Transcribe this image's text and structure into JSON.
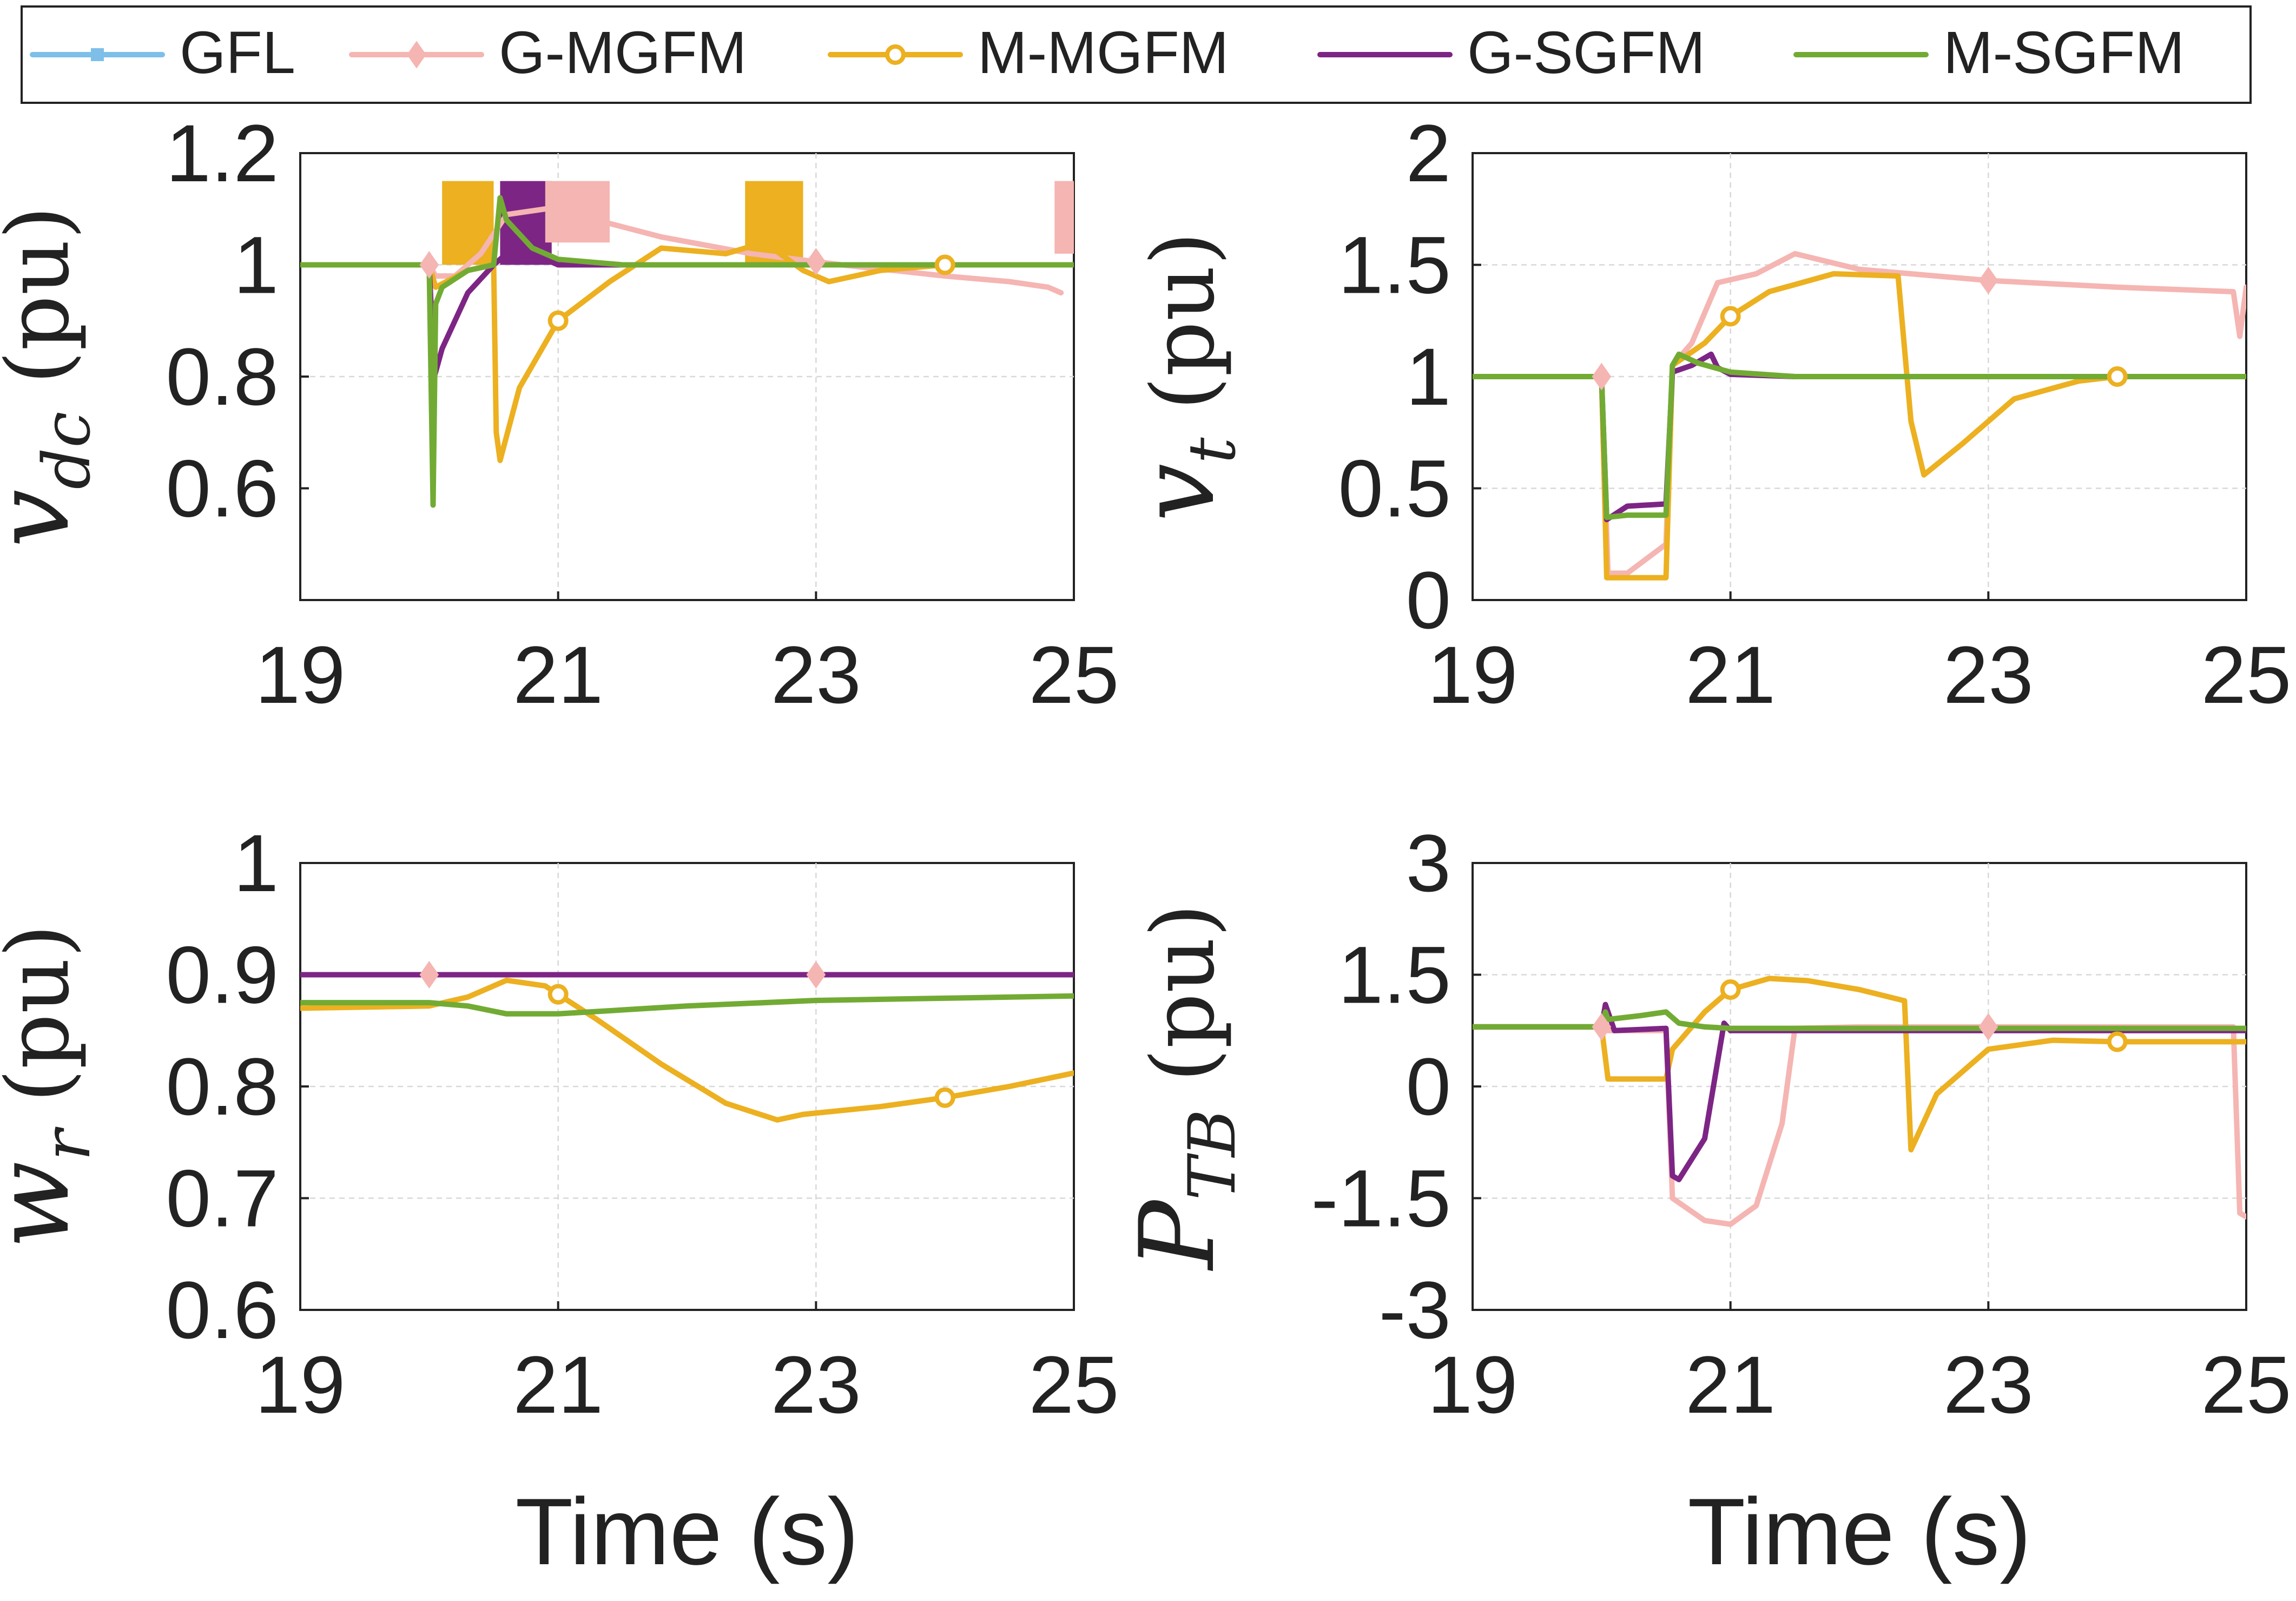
{
  "legend": [
    {
      "name": "GFL",
      "color": "#7dbfe9",
      "marker": "square"
    },
    {
      "name": "G-MGFM",
      "color": "#f5b5b2",
      "marker": "diamond"
    },
    {
      "name": "M-MGFM",
      "color": "#ecb020",
      "marker": "circle"
    },
    {
      "name": "G-SGFM",
      "color": "#7d2585",
      "marker": "none"
    },
    {
      "name": "M-SGFM",
      "color": "#72ab34",
      "marker": "none"
    }
  ],
  "xlabel": "Time (s)",
  "chart_data": [
    {
      "type": "line",
      "panel": "top-left",
      "ylabel_symbol": "v",
      "ylabel_subscript": "dc",
      "ylabel_unit": "(pu)",
      "xlim": [
        19,
        25
      ],
      "ylim": [
        0.4,
        1.2
      ],
      "xticks": [
        "19",
        "21",
        "23",
        "25"
      ],
      "yticks": [
        {
          "v": 0.6,
          "label": "0.6"
        },
        {
          "v": 0.8,
          "label": "0.8"
        },
        {
          "v": 1.0,
          "label": "1"
        },
        {
          "v": 1.2,
          "label": "1.2"
        }
      ],
      "series": [
        {
          "name": "G-MGFM",
          "x": [
            19,
            20,
            20.05,
            20.2,
            20.4,
            20.6,
            20.9,
            21.3,
            21.8,
            22.5,
            23.2,
            24.0,
            24.5,
            24.8,
            24.9
          ],
          "y": [
            1.0,
            1.0,
            0.98,
            0.98,
            1.02,
            1.09,
            1.1,
            1.08,
            1.05,
            1.02,
            1.0,
            0.98,
            0.97,
            0.96,
            0.95
          ],
          "markers": [
            20,
            23
          ]
        },
        {
          "name": "M-MGFM",
          "x": [
            19,
            20,
            20.05,
            20.3,
            20.5,
            20.52,
            20.55,
            20.7,
            21.0,
            21.4,
            21.8,
            22.3,
            22.6,
            22.9,
            23.1,
            23.5,
            24.0,
            25.0
          ],
          "y": [
            1.0,
            1.0,
            0.96,
            0.99,
            1.0,
            0.7,
            0.65,
            0.78,
            0.9,
            0.97,
            1.03,
            1.02,
            1.04,
            0.99,
            0.97,
            0.99,
            1.0,
            1.0
          ],
          "markers": [
            21,
            24
          ]
        },
        {
          "name": "G-SGFM",
          "x": [
            19,
            20,
            20.04,
            20.1,
            20.3,
            20.5,
            20.6,
            20.8,
            21.0,
            21.5,
            25.0
          ],
          "y": [
            1.0,
            1.0,
            0.8,
            0.85,
            0.95,
            1.0,
            1.02,
            1.02,
            1.0,
            1.0,
            1.0
          ],
          "markers": []
        },
        {
          "name": "M-SGFM",
          "x": [
            19,
            20,
            20.03,
            20.05,
            20.1,
            20.3,
            20.5,
            20.55,
            20.6,
            20.8,
            21.0,
            21.5,
            25.0
          ],
          "y": [
            1.0,
            1.0,
            0.57,
            0.93,
            0.96,
            0.99,
            1.0,
            1.12,
            1.08,
            1.03,
            1.01,
            1.0,
            1.0
          ],
          "markers": []
        }
      ],
      "oscillation_bands": [
        {
          "series": "M-MGFM",
          "x0": 20.1,
          "x1": 20.5,
          "ymin": 1.0,
          "ymax": 1.15
        },
        {
          "series": "M-MGFM",
          "x0": 22.45,
          "x1": 22.9,
          "ymin": 1.0,
          "ymax": 1.15
        },
        {
          "series": "G-SGFM",
          "x0": 20.55,
          "x1": 20.95,
          "ymin": 1.0,
          "ymax": 1.15
        },
        {
          "series": "G-MGFM",
          "x0": 20.9,
          "x1": 21.4,
          "ymin": 1.04,
          "ymax": 1.15
        },
        {
          "series": "G-MGFM",
          "x0": 24.85,
          "x1": 25.0,
          "ymin": 1.02,
          "ymax": 1.15
        }
      ]
    },
    {
      "type": "line",
      "panel": "top-right",
      "ylabel_symbol": "v",
      "ylabel_subscript": "t",
      "ylabel_unit": "(pu)",
      "xlim": [
        19,
        25
      ],
      "ylim": [
        0,
        2
      ],
      "xticks": [
        "19",
        "21",
        "23",
        "25"
      ],
      "yticks": [
        {
          "v": 0,
          "label": "0"
        },
        {
          "v": 0.5,
          "label": "0.5"
        },
        {
          "v": 1.0,
          "label": "1"
        },
        {
          "v": 1.5,
          "label": "1.5"
        },
        {
          "v": 2.0,
          "label": "2"
        }
      ],
      "series": [
        {
          "name": "G-MGFM",
          "x": [
            19,
            20,
            20.05,
            20.2,
            20.5,
            20.55,
            20.7,
            20.9,
            21.2,
            21.5,
            22.0,
            23.0,
            24.0,
            24.9,
            24.95,
            25.0
          ],
          "y": [
            1.0,
            1.0,
            0.12,
            0.12,
            0.25,
            1.05,
            1.15,
            1.42,
            1.46,
            1.55,
            1.48,
            1.43,
            1.4,
            1.38,
            1.18,
            1.4
          ],
          "markers": [
            20,
            23
          ]
        },
        {
          "name": "M-MGFM",
          "x": [
            19,
            20,
            20.04,
            20.5,
            20.55,
            20.8,
            21.0,
            21.3,
            21.8,
            22.3,
            22.4,
            22.5,
            22.8,
            23.2,
            23.7,
            24.0,
            25.0
          ],
          "y": [
            1.0,
            1.0,
            0.1,
            0.1,
            1.05,
            1.15,
            1.27,
            1.38,
            1.46,
            1.45,
            0.8,
            0.56,
            0.7,
            0.9,
            0.98,
            1.0,
            1.0
          ],
          "markers": [
            21,
            24
          ]
        },
        {
          "name": "G-SGFM",
          "x": [
            19,
            20,
            20.04,
            20.2,
            20.5,
            20.55,
            20.7,
            20.85,
            20.9,
            21.0,
            21.5,
            25.0
          ],
          "y": [
            1.0,
            1.0,
            0.36,
            0.42,
            0.43,
            1.02,
            1.05,
            1.1,
            1.04,
            1.01,
            1.0,
            1.0
          ],
          "markers": []
        },
        {
          "name": "M-SGFM",
          "x": [
            19,
            20,
            20.04,
            20.2,
            20.5,
            20.55,
            20.6,
            20.75,
            21.0,
            21.5,
            25.0
          ],
          "y": [
            1.0,
            1.0,
            0.37,
            0.38,
            0.38,
            1.05,
            1.1,
            1.06,
            1.02,
            1.0,
            1.0
          ],
          "markers": []
        }
      ]
    },
    {
      "type": "line",
      "panel": "bottom-left",
      "ylabel_symbol": "w",
      "ylabel_subscript": "r",
      "ylabel_unit": "(pu)",
      "xlim": [
        19,
        25
      ],
      "ylim": [
        0.6,
        1.0
      ],
      "xticks": [
        "19",
        "21",
        "23",
        "25"
      ],
      "yticks": [
        {
          "v": 0.6,
          "label": "0.6"
        },
        {
          "v": 0.7,
          "label": "0.7"
        },
        {
          "v": 0.8,
          "label": "0.8"
        },
        {
          "v": 0.9,
          "label": "0.9"
        },
        {
          "v": 1.0,
          "label": "1"
        }
      ],
      "series": [
        {
          "name": "G-MGFM",
          "x": [
            19,
            25
          ],
          "y": [
            0.9,
            0.9
          ],
          "markers": [
            20,
            23
          ]
        },
        {
          "name": "M-MGFM",
          "x": [
            19,
            20.0,
            20.3,
            20.6,
            20.9,
            21.3,
            21.8,
            22.3,
            22.7,
            22.9,
            23.5,
            24.0,
            24.5,
            25.0
          ],
          "y": [
            0.87,
            0.872,
            0.88,
            0.895,
            0.89,
            0.86,
            0.82,
            0.785,
            0.77,
            0.775,
            0.782,
            0.79,
            0.8,
            0.812
          ],
          "markers": [
            21,
            24
          ]
        },
        {
          "name": "G-SGFM",
          "x": [
            19,
            25
          ],
          "y": [
            0.9,
            0.9
          ],
          "markers": []
        },
        {
          "name": "M-SGFM",
          "x": [
            19,
            20.0,
            20.3,
            20.6,
            21.0,
            22.0,
            23.0,
            24.0,
            25.0
          ],
          "y": [
            0.875,
            0.875,
            0.872,
            0.865,
            0.865,
            0.872,
            0.877,
            0.879,
            0.881
          ],
          "markers": []
        }
      ]
    },
    {
      "type": "line",
      "panel": "bottom-right",
      "ylabel_symbol": "P",
      "ylabel_subscript": "TB",
      "ylabel_unit": "(pu)",
      "xlim": [
        19,
        25
      ],
      "ylim": [
        -3,
        3
      ],
      "xticks": [
        "19",
        "21",
        "23",
        "25"
      ],
      "yticks": [
        {
          "v": -3,
          "label": "-3"
        },
        {
          "v": -1.5,
          "label": "-1.5"
        },
        {
          "v": 0,
          "label": "0"
        },
        {
          "v": 1.5,
          "label": "1.5"
        },
        {
          "v": 3,
          "label": "3"
        }
      ],
      "series": [
        {
          "name": "G-MGFM",
          "x": [
            19,
            20,
            20.05,
            20.5,
            20.55,
            20.8,
            21.0,
            21.2,
            21.4,
            21.5,
            22.0,
            23.0,
            24.0,
            24.9,
            24.95,
            25.0
          ],
          "y": [
            0.8,
            0.8,
            0.75,
            0.75,
            -1.5,
            -1.8,
            -1.85,
            -1.6,
            -0.5,
            0.78,
            0.8,
            0.8,
            0.8,
            0.8,
            -1.7,
            -1.75
          ],
          "markers": [
            20,
            23
          ]
        },
        {
          "name": "M-MGFM",
          "x": [
            19,
            20,
            20.05,
            20.5,
            20.55,
            20.8,
            21.0,
            21.3,
            21.6,
            22.0,
            22.35,
            22.4,
            22.6,
            23.0,
            23.5,
            24.0,
            25.0
          ],
          "y": [
            0.8,
            0.8,
            0.1,
            0.1,
            0.5,
            1.0,
            1.3,
            1.45,
            1.42,
            1.3,
            1.15,
            -0.85,
            -0.1,
            0.5,
            0.62,
            0.6,
            0.6
          ],
          "markers": [
            21,
            24
          ]
        },
        {
          "name": "G-SGFM",
          "x": [
            19,
            20,
            20.03,
            20.1,
            20.5,
            20.55,
            20.6,
            20.8,
            20.95,
            21.0,
            22.0,
            25.0
          ],
          "y": [
            0.8,
            0.8,
            1.1,
            0.75,
            0.78,
            -1.2,
            -1.25,
            -0.7,
            0.85,
            0.75,
            0.75,
            0.75
          ],
          "markers": []
        },
        {
          "name": "M-SGFM",
          "x": [
            19,
            20,
            20.03,
            20.05,
            20.3,
            20.5,
            20.6,
            20.8,
            21.0,
            25.0
          ],
          "y": [
            0.8,
            0.8,
            1.0,
            0.9,
            0.95,
            1.0,
            0.85,
            0.8,
            0.78,
            0.78
          ],
          "markers": []
        }
      ]
    }
  ]
}
